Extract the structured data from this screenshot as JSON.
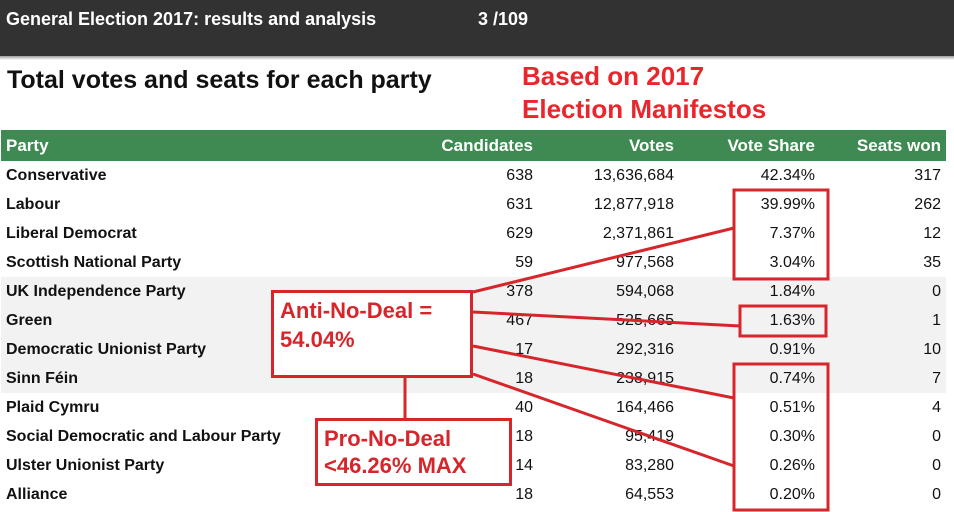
{
  "viewer": {
    "title": "General Election 2017: results and analysis",
    "page_counter": "3 /109"
  },
  "heading": "Total votes and seats for each party",
  "note": {
    "line1": "Based on 2017",
    "line2": "Election Manifestos"
  },
  "table": {
    "headers": {
      "party": "Party",
      "candidates": "Candidates",
      "votes": "Votes",
      "vote_share": "Vote Share",
      "seats_won": "Seats won"
    },
    "rows": [
      {
        "party": "Conservative",
        "candidates": "638",
        "votes": "13,636,684",
        "vote_share": "42.34%",
        "seats_won": "317"
      },
      {
        "party": "Labour",
        "candidates": "631",
        "votes": "12,877,918",
        "vote_share": "39.99%",
        "seats_won": "262"
      },
      {
        "party": "Liberal Democrat",
        "candidates": "629",
        "votes": "2,371,861",
        "vote_share": "7.37%",
        "seats_won": "12"
      },
      {
        "party": "Scottish National Party",
        "candidates": "59",
        "votes": "977,568",
        "vote_share": "3.04%",
        "seats_won": "35"
      },
      {
        "party": "UK Independence Party",
        "candidates": "378",
        "votes": "594,068",
        "vote_share": "1.84%",
        "seats_won": "0"
      },
      {
        "party": "Green",
        "candidates": "467",
        "votes": "525,665",
        "vote_share": "1.63%",
        "seats_won": "1"
      },
      {
        "party": "Democratic Unionist Party",
        "candidates": "17",
        "votes": "292,316",
        "vote_share": "0.91%",
        "seats_won": "10"
      },
      {
        "party": "Sinn Féin",
        "candidates": "18",
        "votes": "238,915",
        "vote_share": "0.74%",
        "seats_won": "7"
      },
      {
        "party": "Plaid Cymru",
        "candidates": "40",
        "votes": "164,466",
        "vote_share": "0.51%",
        "seats_won": "4"
      },
      {
        "party": "Social Democratic and Labour Party",
        "candidates": "18",
        "votes": "95,419",
        "vote_share": "0.30%",
        "seats_won": "0"
      },
      {
        "party": "Ulster Unionist Party",
        "candidates": "14",
        "votes": "83,280",
        "vote_share": "0.26%",
        "seats_won": "0"
      },
      {
        "party": "Alliance",
        "candidates": "18",
        "votes": "64,553",
        "vote_share": "0.20%",
        "seats_won": "0"
      }
    ]
  },
  "annotations": {
    "anti_line1": "Anti-No-Deal =",
    "anti_line2": "54.04%",
    "pro_line1": "Pro-No-Deal",
    "pro_line2": "<46.26% MAX"
  },
  "colors": {
    "header_green": "#3e8a52",
    "annotation_red": "#d7262b",
    "toolbar": "#323232"
  }
}
